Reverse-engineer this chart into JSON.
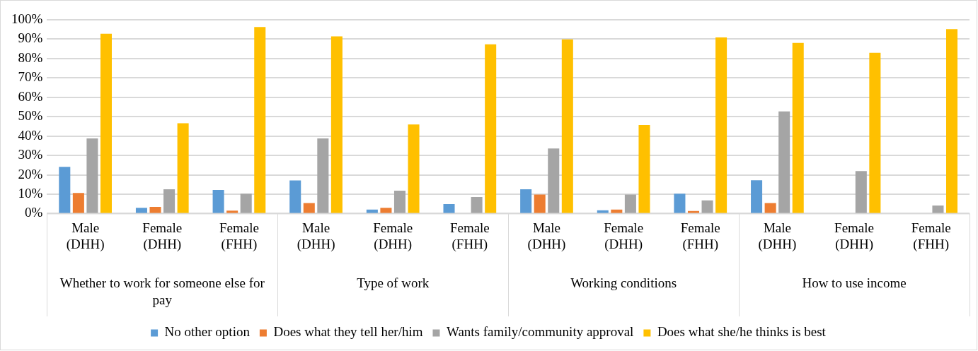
{
  "chart_data": {
    "type": "bar",
    "categories": [
      "Male (DHH)",
      "Female (DHH)",
      "Female (FHH)",
      "Male (DHH)",
      "Female (DHH)",
      "Female (FHH)",
      "Male (DHH)",
      "Female (DHH)",
      "Female (FHH)",
      "Male (DHH)",
      "Female (DHH)",
      "Female (FHH)"
    ],
    "series": [
      {
        "name": "No other option",
        "color": "#5b9bd5",
        "values": [
          24.1,
          3.0,
          12.2,
          17.1,
          2.1,
          4.9,
          12.5,
          1.7,
          10.3,
          17.2,
          0,
          0
        ]
      },
      {
        "name": "Does what they tell her/him",
        "color": "#ed7d31",
        "values": [
          10.6,
          3.4,
          1.5,
          5.4,
          3.0,
          0,
          9.8,
          2.1,
          1.3,
          5.4,
          0,
          0
        ]
      },
      {
        "name": "Wants family/community approval",
        "color": "#a5a5a5",
        "values": [
          38.8,
          12.5,
          10.3,
          38.8,
          11.8,
          8.5,
          33.6,
          9.8,
          6.8,
          52.7,
          21.9,
          4.2
        ]
      },
      {
        "name": "Does what she/he thinks is best",
        "color": "#ffc000",
        "values": [
          92.8,
          46.6,
          96.3,
          91.4,
          46.0,
          87.3,
          89.9,
          45.7,
          90.9,
          88.1,
          83.0,
          95.2
        ]
      }
    ],
    "annotations": [
      "Whether to work for someone else for pay",
      "Type of work",
      "Working conditions",
      "How to use income"
    ],
    "ylim": [
      0,
      100
    ],
    "yticks": [
      {
        "value": 0,
        "label": "0%"
      },
      {
        "value": 10,
        "label": "10%"
      },
      {
        "value": 20,
        "label": "20%"
      },
      {
        "value": 30,
        "label": "30%"
      },
      {
        "value": 40,
        "label": "40%"
      },
      {
        "value": 50,
        "label": "50%"
      },
      {
        "value": 60,
        "label": "60%"
      },
      {
        "value": 70,
        "label": "70%"
      },
      {
        "value": 80,
        "label": "80%"
      },
      {
        "value": 90,
        "label": "90%"
      },
      {
        "value": 100,
        "label": "100%"
      }
    ],
    "grid": "y",
    "legend": "bottom"
  }
}
